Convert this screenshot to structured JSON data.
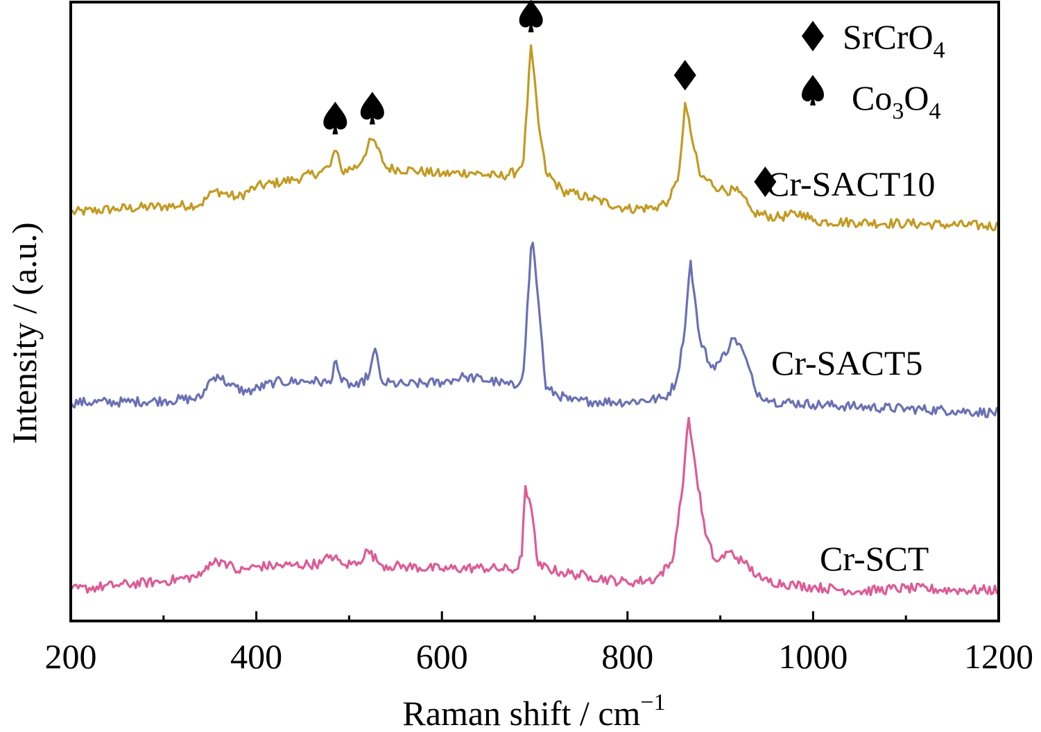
{
  "chart_data": {
    "type": "line",
    "title": "",
    "xlabel": "Raman shift / cm",
    "xlabel_superscript": "−1",
    "ylabel": "Intensity / (a.u.)",
    "xlim": [
      200,
      1200
    ],
    "ylim": [
      0,
      100
    ],
    "x_ticks_major": [
      200,
      400,
      600,
      800,
      1000,
      1200
    ],
    "x_tick_labels": [
      "200",
      "400",
      "600",
      "800",
      "1000",
      "1200"
    ],
    "x_ticks_minor": [
      300,
      500,
      700,
      900,
      1100
    ],
    "y_ticks": [],
    "grid": false,
    "legend": {
      "placement": "top-right",
      "entries": [
        {
          "symbol": "diamond",
          "glyph": "♦",
          "label_main": "SrCrO",
          "label_sub": "4",
          "label_parts": [
            [
              "SrCrO",
              ""
            ],
            [
              "4",
              "sub"
            ]
          ]
        },
        {
          "symbol": "spade",
          "glyph": "♠",
          "label_parts": [
            [
              "Co",
              ""
            ],
            [
              "3",
              "sub"
            ],
            [
              "O",
              ""
            ],
            [
              "4",
              "sub"
            ]
          ]
        }
      ]
    },
    "series": [
      {
        "name": "Cr-SACT10",
        "color": "#c39a22",
        "points": [
          [
            200,
            66.0
          ],
          [
            250,
            66.6
          ],
          [
            300,
            67.0
          ],
          [
            340,
            67.3
          ],
          [
            355,
            69.6
          ],
          [
            380,
            68.4
          ],
          [
            400,
            70.2
          ],
          [
            440,
            71.3
          ],
          [
            470,
            72.6
          ],
          [
            480,
            73.6
          ],
          [
            485,
            76.5
          ],
          [
            492,
            72.7
          ],
          [
            510,
            73.5
          ],
          [
            525,
            78.1
          ],
          [
            540,
            73.2
          ],
          [
            570,
            72.8
          ],
          [
            600,
            72.2
          ],
          [
            630,
            72.5
          ],
          [
            660,
            71.8
          ],
          [
            680,
            72.5
          ],
          [
            688,
            74.5
          ],
          [
            696,
            93.0
          ],
          [
            704,
            80.5
          ],
          [
            712,
            72.5
          ],
          [
            730,
            69.5
          ],
          [
            760,
            68.3
          ],
          [
            800,
            66.6
          ],
          [
            830,
            66.8
          ],
          [
            845,
            68.0
          ],
          [
            855,
            71.5
          ],
          [
            862,
            83.7
          ],
          [
            868,
            79.0
          ],
          [
            878,
            72.0
          ],
          [
            900,
            69.8
          ],
          [
            920,
            69.3
          ],
          [
            935,
            66.0
          ],
          [
            960,
            65.2
          ],
          [
            990,
            65.9
          ],
          [
            1000,
            64.6
          ],
          [
            1050,
            64.4
          ],
          [
            1100,
            64.2
          ],
          [
            1150,
            64.0
          ],
          [
            1200,
            63.8
          ]
        ]
      },
      {
        "name": "Cr-SACT5",
        "color": "#6a70b4",
        "points": [
          [
            200,
            35.3
          ],
          [
            260,
            35.4
          ],
          [
            300,
            35.6
          ],
          [
            340,
            36.0
          ],
          [
            348,
            38.5
          ],
          [
            358,
            39.8
          ],
          [
            372,
            38.0
          ],
          [
            390,
            37.0
          ],
          [
            420,
            38.6
          ],
          [
            460,
            38.8
          ],
          [
            480,
            38.4
          ],
          [
            485,
            42.6
          ],
          [
            492,
            38.6
          ],
          [
            510,
            37.8
          ],
          [
            522,
            40.0
          ],
          [
            528,
            44.0
          ],
          [
            535,
            38.5
          ],
          [
            560,
            38.2
          ],
          [
            600,
            38.6
          ],
          [
            625,
            39.5
          ],
          [
            660,
            38.6
          ],
          [
            680,
            37.8
          ],
          [
            688,
            40.5
          ],
          [
            697,
            62.7
          ],
          [
            705,
            50.0
          ],
          [
            712,
            37.5
          ],
          [
            740,
            35.5
          ],
          [
            760,
            35.5
          ],
          [
            800,
            35.4
          ],
          [
            840,
            36.0
          ],
          [
            852,
            38.5
          ],
          [
            860,
            45.0
          ],
          [
            868,
            58.2
          ],
          [
            877,
            46.0
          ],
          [
            890,
            41.0
          ],
          [
            900,
            42.0
          ],
          [
            915,
            45.9
          ],
          [
            925,
            43.5
          ],
          [
            938,
            37.2
          ],
          [
            955,
            35.5
          ],
          [
            1000,
            35.0
          ],
          [
            1050,
            34.6
          ],
          [
            1100,
            34.3
          ],
          [
            1150,
            34.0
          ],
          [
            1200,
            33.6
          ]
        ]
      },
      {
        "name": "Cr-SCT",
        "color": "#dd5b96",
        "points": [
          [
            200,
            5.0
          ],
          [
            250,
            5.8
          ],
          [
            300,
            6.4
          ],
          [
            340,
            7.3
          ],
          [
            350,
            9.5
          ],
          [
            365,
            9.7
          ],
          [
            380,
            8.0
          ],
          [
            400,
            8.8
          ],
          [
            440,
            9.0
          ],
          [
            470,
            9.3
          ],
          [
            480,
            10.6
          ],
          [
            495,
            9.0
          ],
          [
            510,
            9.5
          ],
          [
            520,
            11.4
          ],
          [
            535,
            9.0
          ],
          [
            560,
            8.8
          ],
          [
            600,
            8.4
          ],
          [
            640,
            8.6
          ],
          [
            680,
            8.3
          ],
          [
            686,
            10.5
          ],
          [
            690,
            21.8
          ],
          [
            697,
            18.0
          ],
          [
            703,
            9.0
          ],
          [
            730,
            7.8
          ],
          [
            760,
            7.2
          ],
          [
            800,
            6.2
          ],
          [
            830,
            6.8
          ],
          [
            848,
            9.5
          ],
          [
            858,
            20.0
          ],
          [
            866,
            32.8
          ],
          [
            874,
            24.0
          ],
          [
            884,
            14.0
          ],
          [
            895,
            9.5
          ],
          [
            910,
            11.2
          ],
          [
            925,
            9.5
          ],
          [
            945,
            6.6
          ],
          [
            980,
            5.8
          ],
          [
            1000,
            5.5
          ],
          [
            1050,
            4.8
          ],
          [
            1100,
            5.3
          ],
          [
            1150,
            5.0
          ],
          [
            1200,
            5.0
          ]
        ]
      }
    ],
    "annotations": [
      {
        "glyph": "♠",
        "meaning": "Co3O4",
        "x": 485,
        "on_series": "Cr-SACT10"
      },
      {
        "glyph": "♠",
        "meaning": "Co3O4",
        "x": 525,
        "on_series": "Cr-SACT10"
      },
      {
        "glyph": "♠",
        "meaning": "Co3O4",
        "x": 696,
        "on_series": "Cr-SACT10"
      },
      {
        "glyph": "♦",
        "meaning": "SrCrO4",
        "x": 862,
        "on_series": "Cr-SACT10"
      },
      {
        "glyph": "♦",
        "meaning": "SrCrO4",
        "x": 920,
        "on_series": "Cr-SACT10"
      }
    ],
    "series_labels": [
      {
        "text": "Cr-SACT10",
        "series": "Cr-SACT10"
      },
      {
        "text": "Cr-SACT5",
        "series": "Cr-SACT5"
      },
      {
        "text": "Cr-SCT",
        "series": "Cr-SCT"
      }
    ]
  }
}
